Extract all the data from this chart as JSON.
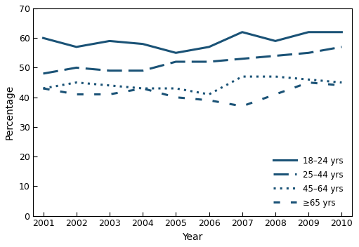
{
  "years": [
    2001,
    2002,
    2003,
    2004,
    2005,
    2006,
    2007,
    2008,
    2009,
    2010
  ],
  "series": {
    "18-24 yrs": [
      60,
      57,
      59,
      58,
      55,
      57,
      62,
      59,
      62,
      62
    ],
    "25-44 yrs": [
      48,
      50,
      49,
      49,
      52,
      52,
      53,
      54,
      55,
      57
    ],
    "45-64 yrs": [
      43,
      45,
      44,
      43,
      43,
      41,
      47,
      47,
      46,
      45
    ],
    ">=65 yrs": [
      43,
      41,
      41,
      43,
      40,
      39,
      37,
      41,
      45,
      44
    ]
  },
  "legend_labels": {
    "18-24 yrs": "18–24 yrs",
    "25-44 yrs": "25–44 yrs",
    "45-64 yrs": "45–64 yrs",
    ">=65 yrs": "≥65 yrs"
  },
  "color": "#1a5276",
  "xlabel": "Year",
  "ylabel": "Percentage",
  "ylim": [
    0,
    70
  ],
  "yticks": [
    0,
    10,
    20,
    30,
    40,
    50,
    60,
    70
  ],
  "xticks": [
    2001,
    2002,
    2003,
    2004,
    2005,
    2006,
    2007,
    2008,
    2009,
    2010
  ],
  "linewidth": 2.2,
  "legend_loc": "lower right",
  "legend_fontsize": 8.5,
  "axis_fontsize": 10,
  "tick_fontsize": 9
}
